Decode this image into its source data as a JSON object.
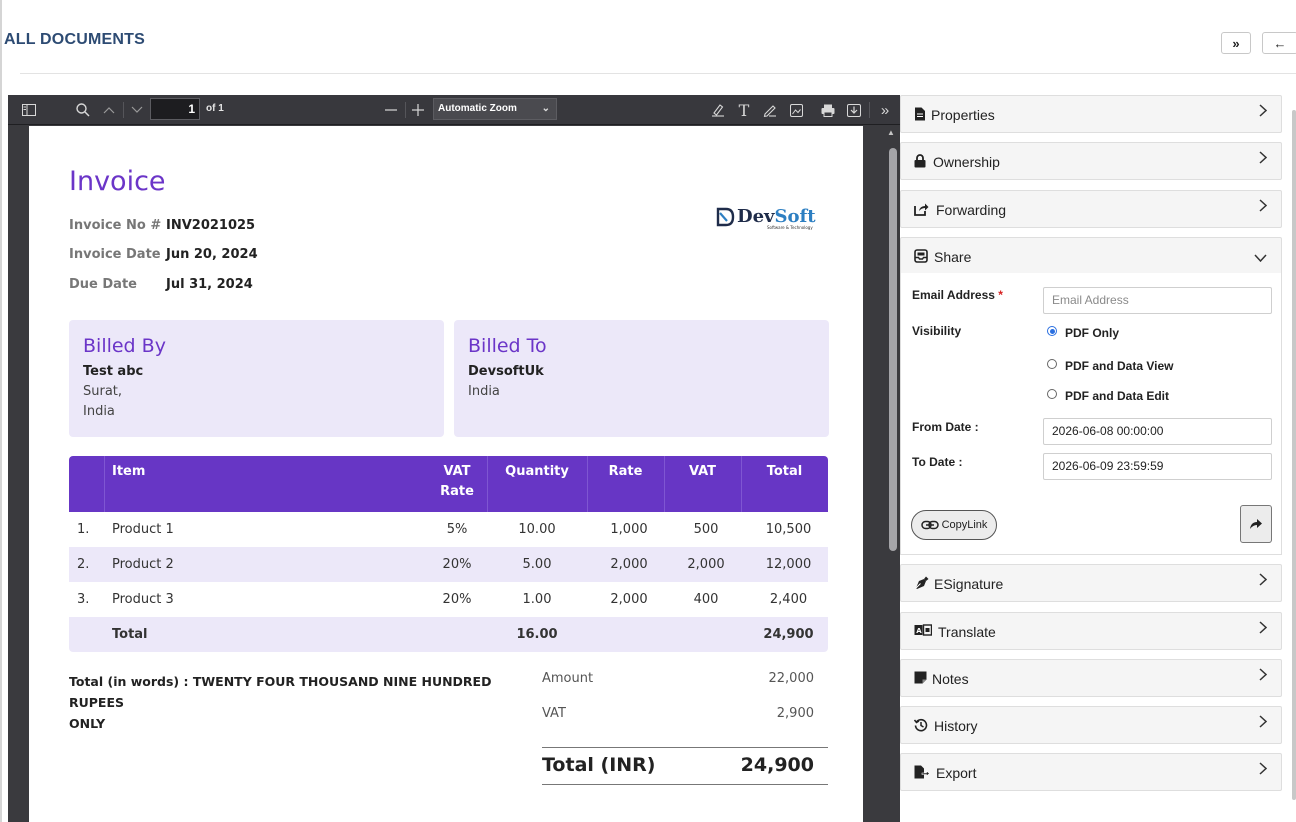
{
  "header": {
    "title": "ALL DOCUMENTS",
    "expand_label": "»",
    "back_label": "←"
  },
  "viewer": {
    "page_input": "1",
    "page_of": "of 1",
    "zoom": "Automatic Zoom"
  },
  "invoice": {
    "title": "Invoice",
    "meta": [
      {
        "label": "Invoice No #",
        "value": "INV2021025"
      },
      {
        "label": "Invoice Date",
        "value": "Jun 20, 2024"
      },
      {
        "label": "Due Date",
        "value": "Jul 31, 2024"
      }
    ],
    "logo": {
      "dev": "Dev",
      "soft": "Soft",
      "tagline": "Software & Technology"
    },
    "billed_by": {
      "heading": "Billed By",
      "name": "Test abc",
      "line1": "Surat,",
      "line2": "India"
    },
    "billed_to": {
      "heading": "Billed To",
      "name": "DevsoftUk",
      "line1": "India"
    },
    "table": {
      "headers": {
        "item": "Item",
        "vat_rate_1": "VAT",
        "vat_rate_2": "Rate",
        "quantity": "Quantity",
        "rate": "Rate",
        "vat": "VAT",
        "total": "Total"
      },
      "rows": [
        {
          "no": "1.",
          "item": "Product 1",
          "vat_rate": "5%",
          "qty": "10.00",
          "rate": "1,000",
          "vat": "500",
          "total": "10,500"
        },
        {
          "no": "2.",
          "item": "Product 2",
          "vat_rate": "20%",
          "qty": "5.00",
          "rate": "2,000",
          "vat": "2,000",
          "total": "12,000"
        },
        {
          "no": "3.",
          "item": "Product 3",
          "vat_rate": "20%",
          "qty": "1.00",
          "rate": "2,000",
          "vat": "400",
          "total": "2,400"
        }
      ],
      "footer": {
        "label": "Total",
        "qty": "16.00",
        "total": "24,900"
      }
    },
    "words_line1": "Total (in words) : TWENTY FOUR THOUSAND NINE HUNDRED RUPEES",
    "words_line2": "ONLY",
    "summary": {
      "amount_label": "Amount",
      "amount": "22,000",
      "vat_label": "VAT",
      "vat": "2,900",
      "total_label": "Total (INR)",
      "total": "24,900"
    }
  },
  "panel": {
    "sections": {
      "properties": "Properties",
      "ownership": "Ownership",
      "forwarding": "Forwarding",
      "share": "Share",
      "esignature": "ESignature",
      "translate": "Translate",
      "notes": "Notes",
      "history": "History",
      "export": "Export"
    },
    "share": {
      "email_label": "Email Address",
      "required_mark": "*",
      "email_placeholder": "Email Address",
      "visibility_label": "Visibility",
      "options": [
        "PDF Only",
        "PDF and Data View",
        "PDF and Data Edit"
      ],
      "selected_option": "PDF Only",
      "from_label": "From Date :",
      "from_value": "2026-06-08 00:00:00",
      "to_label": "To Date :",
      "to_value": "2026-06-09 23:59:59",
      "copy_link_label": "CopyLink"
    }
  },
  "colors": {
    "accent": "#6736c5",
    "header_title": "#2d4b73",
    "light_purple": "#ece8f9",
    "viewer_bg": "#3a3a3e"
  }
}
